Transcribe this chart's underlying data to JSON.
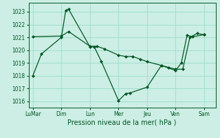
{
  "background_color": "#cceee4",
  "grid_color": "#99ddcc",
  "line_color": "#005522",
  "marker_color": "#005522",
  "text_color": "#005522",
  "xlabel": "Pression niveau de la mer( hPa )",
  "ylim": [
    1015.5,
    1023.7
  ],
  "yticks": [
    1016,
    1017,
    1018,
    1019,
    1020,
    1021,
    1022,
    1023
  ],
  "xtick_labels": [
    "LuMar",
    "Dim",
    "Lun",
    "Mer",
    "Jeu",
    "Ven",
    "Sam"
  ],
  "xtick_positions": [
    0,
    2,
    4,
    6,
    8,
    10,
    12
  ],
  "xlim": [
    -0.3,
    12.8
  ],
  "line1_x": [
    0,
    0.6,
    2.0,
    2.3,
    2.5,
    4.0,
    4.3,
    4.8,
    6.0,
    6.5,
    6.8,
    8.0,
    9.0,
    10.0,
    10.4,
    10.8,
    11.2,
    12.0
  ],
  "line1_y": [
    1018.0,
    1019.7,
    1021.0,
    1023.1,
    1023.2,
    1020.25,
    1020.25,
    1019.1,
    1016.05,
    1016.6,
    1016.65,
    1017.1,
    1018.8,
    1018.4,
    1019.0,
    1021.15,
    1021.05,
    1021.2
  ],
  "line2_x": [
    0.0,
    2.0,
    2.5,
    4.0,
    4.5,
    5.0,
    6.0,
    6.5,
    7.0,
    7.5,
    8.0,
    9.0,
    9.5,
    10.0,
    10.5,
    11.0,
    11.5,
    12.0
  ],
  "line2_y": [
    1021.05,
    1021.1,
    1021.45,
    1020.3,
    1020.3,
    1020.1,
    1019.6,
    1019.5,
    1019.5,
    1019.3,
    1019.1,
    1018.8,
    1018.65,
    1018.5,
    1018.5,
    1021.0,
    1021.3,
    1021.2
  ]
}
